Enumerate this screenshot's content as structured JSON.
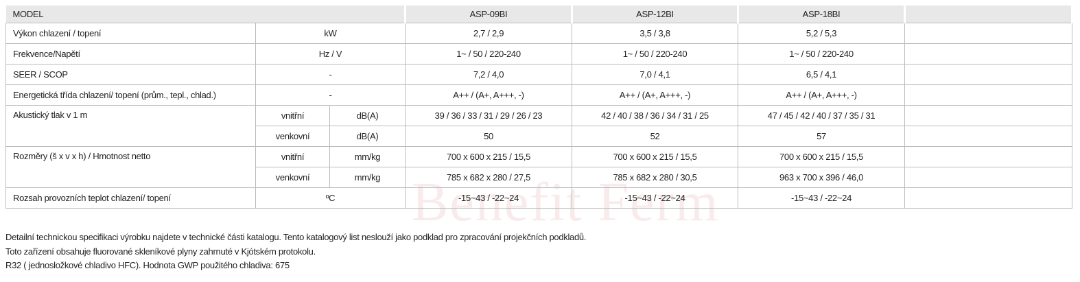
{
  "table": {
    "header": [
      "MODEL",
      "ASP-09BI",
      "ASP-12BI",
      "ASP-18BI"
    ],
    "rows": [
      {
        "label": "Výkon chlazení / topení",
        "unit": "kW",
        "values": [
          "2,7 / 2,9",
          "3,5 / 3,8",
          "5,2 / 5,3"
        ]
      },
      {
        "label": "Frekvence/Napětí",
        "unit": "Hz / V",
        "values": [
          "1~ / 50 / 220-240",
          "1~ / 50 / 220-240",
          "1~ / 50 / 220-240"
        ]
      },
      {
        "label": "SEER / SCOP",
        "unit": "-",
        "values": [
          "7,2 / 4,0",
          "7,0 / 4,1",
          "6,5 / 4,1"
        ]
      },
      {
        "label": "Energetická třída chlazení/ topení (prům., tepl., chlad.)",
        "unit": "-",
        "values": [
          "A++ / (A+, A+++, -)",
          "A++ / (A+, A+++, -)",
          "A++ / (A+, A+++, -)"
        ]
      },
      {
        "label": "Akustický tlak v 1 m",
        "parts": [
          {
            "sub": "vnitřní",
            "unit": "dB(A)",
            "values": [
              "39 / 36 / 33 / 31 / 29 / 26 / 23",
              "42 / 40 / 38 / 36 / 34 / 31 / 25",
              "47 / 45 / 42 / 40 / 37 / 35 / 31"
            ]
          },
          {
            "sub": "venkovní",
            "unit": "dB(A)",
            "values": [
              "50",
              "52",
              "57"
            ]
          }
        ]
      },
      {
        "label": "Rozměry (š x v x h) / Hmotnost netto",
        "parts": [
          {
            "sub": "vnitřní",
            "unit": "mm/kg",
            "values": [
              "700 x 600 x 215 / 15,5",
              "700 x 600 x 215 / 15,5",
              "700 x 600 x 215 / 15,5"
            ]
          },
          {
            "sub": "venkovní",
            "unit": "mm/kg",
            "values": [
              "785 x 682 x 280 / 27,5",
              "785 x 682 x 280 / 30,5",
              "963 x 700 x 396 / 46,0"
            ]
          }
        ]
      },
      {
        "label": "Rozsah provozních teplot chlazení/ topení",
        "unit": "ºC",
        "values": [
          "-15~43 / -22~24",
          "-15~43 / -22~24",
          "-15~43 / -22~24"
        ]
      }
    ]
  },
  "notes": [
    "Detailní technickou specifikaci výrobku najdete v technické části katalogu. Tento katalogový list neslouží jako podklad pro zpracování projekčních podkladů.",
    "Toto zařízení obsahuje fluorované skleníkové plyny zahrnuté v Kjótském protokolu.",
    "R32 ( jednosložkové chladivo HFC). Hodnota GWP použitého chladiva: 675"
  ],
  "watermark": "Benefit Ferm"
}
